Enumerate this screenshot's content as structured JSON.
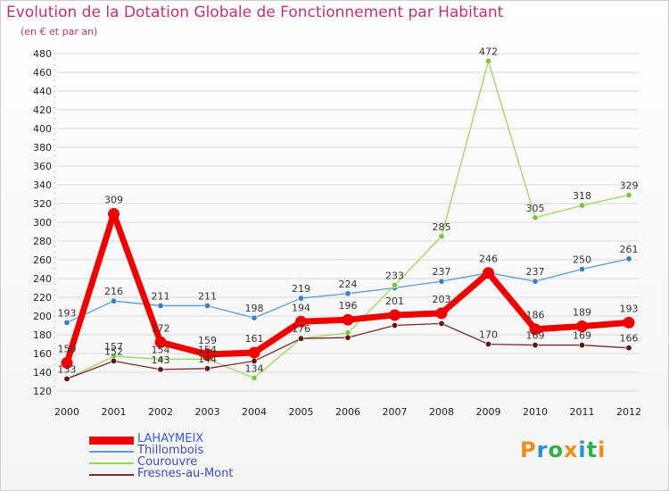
{
  "title": "Evolution de la Dotation Globale de Fonctionnement par Habitant",
  "subtitle": "(en € et par an)",
  "logo": {
    "text": "Proxiti",
    "colors": [
      "#f08c1a",
      "#2a8fd6",
      "#2fb04a",
      "#f08c1a",
      "#2a8fd6",
      "#2fb04a",
      "#f08c1a"
    ]
  },
  "chart_data": {
    "type": "line",
    "x": [
      "2000",
      "2001",
      "2002",
      "2003",
      "2004",
      "2005",
      "2006",
      "2007",
      "2008",
      "2009",
      "2010",
      "2011",
      "2012"
    ],
    "ylim": [
      120,
      480
    ],
    "yticks": [
      120,
      140,
      160,
      180,
      200,
      220,
      240,
      260,
      280,
      300,
      320,
      340,
      360,
      380,
      400,
      420,
      440,
      460,
      480
    ],
    "grid": "horizontal",
    "legend_position": "bottom-left",
    "series": [
      {
        "name": "Thillombois",
        "color": "#5b9bd5",
        "marker": "#3a7fc0",
        "width": 1.3,
        "values": [
          193,
          216,
          211,
          211,
          198,
          219,
          224,
          230,
          237,
          246,
          237,
          250,
          261
        ],
        "labels": [
          "193",
          "216",
          "211",
          "211",
          "198",
          "219",
          "224",
          "",
          "237",
          "",
          "237",
          "250",
          "261"
        ]
      },
      {
        "name": "Courouvre",
        "color": "#9ad65a",
        "marker": "#7dc43c",
        "width": 1.3,
        "values": [
          133,
          157,
          154,
          154,
          134,
          176,
          182,
          233,
          285,
          472,
          305,
          318,
          329
        ],
        "labels": [
          "",
          "157",
          "154",
          "154",
          "134",
          "",
          "",
          "233",
          "285",
          "472",
          "305",
          "318",
          "329"
        ]
      },
      {
        "name": "Fresnes-au-Mont",
        "color": "#7a2a2a",
        "marker": "#5a1717",
        "width": 1.3,
        "values": [
          133,
          152,
          143,
          144,
          152,
          176,
          177,
          190,
          192,
          170,
          169,
          169,
          166
        ],
        "labels": [
          "133",
          "152",
          "143",
          "144",
          "",
          "176",
          "",
          "",
          "",
          "170",
          "169",
          "169",
          "166"
        ]
      },
      {
        "name": "LAHAYMEIX",
        "color": "#ee0000",
        "marker": "#ee0000",
        "width": 7,
        "values": [
          150,
          309,
          172,
          159,
          161,
          194,
          196,
          201,
          203,
          246,
          186,
          189,
          193
        ],
        "labels": [
          "150",
          "309",
          "172",
          "159",
          "161",
          "194",
          "196",
          "201",
          "203",
          "246",
          "186",
          "189",
          "193"
        ]
      }
    ],
    "legend_order": [
      "LAHAYMEIX",
      "Thillombois",
      "Courouvre",
      "Fresnes-au-Mont"
    ]
  }
}
